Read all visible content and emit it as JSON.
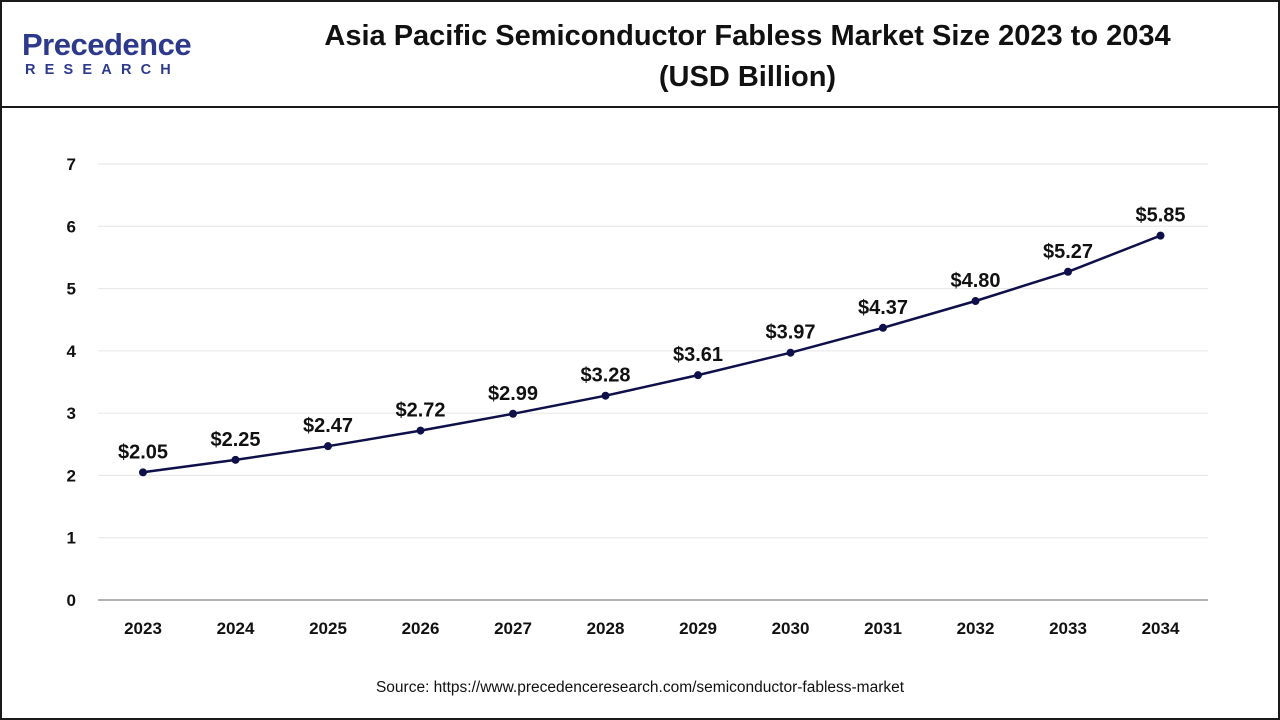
{
  "header": {
    "logo_main": "Precedence",
    "logo_sub": "RESEARCH",
    "title_line1": "Asia Pacific Semiconductor Fabless Market Size 2023 to 2034",
    "title_line2": "(USD Billion)"
  },
  "source": "Source: https://www.precedenceresearch.com/semiconductor-fabless-market",
  "colors": {
    "line": "#0f0f4a",
    "grid": "#e6e6e6",
    "axis": "#999999",
    "brand": "#2d3a8c"
  },
  "chart_data": {
    "type": "line",
    "title": "Asia Pacific Semiconductor Fabless Market Size 2023 to 2034 (USD Billion)",
    "xlabel": "",
    "ylabel": "",
    "categories": [
      "2023",
      "2024",
      "2025",
      "2026",
      "2027",
      "2028",
      "2029",
      "2030",
      "2031",
      "2032",
      "2033",
      "2034"
    ],
    "values": [
      2.05,
      2.25,
      2.47,
      2.72,
      2.99,
      3.28,
      3.61,
      3.97,
      4.37,
      4.8,
      5.27,
      5.85
    ],
    "labels": [
      "$2.05",
      "$2.25",
      "$2.47",
      "$2.72",
      "$2.99",
      "$3.28",
      "$3.61",
      "$3.97",
      "$4.37",
      "$4.80",
      "$5.27",
      "$5.85"
    ],
    "yticks": [
      0,
      1,
      2,
      3,
      4,
      5,
      6,
      7
    ],
    "ylim": [
      0,
      7
    ],
    "grid": true,
    "legend": "none"
  }
}
